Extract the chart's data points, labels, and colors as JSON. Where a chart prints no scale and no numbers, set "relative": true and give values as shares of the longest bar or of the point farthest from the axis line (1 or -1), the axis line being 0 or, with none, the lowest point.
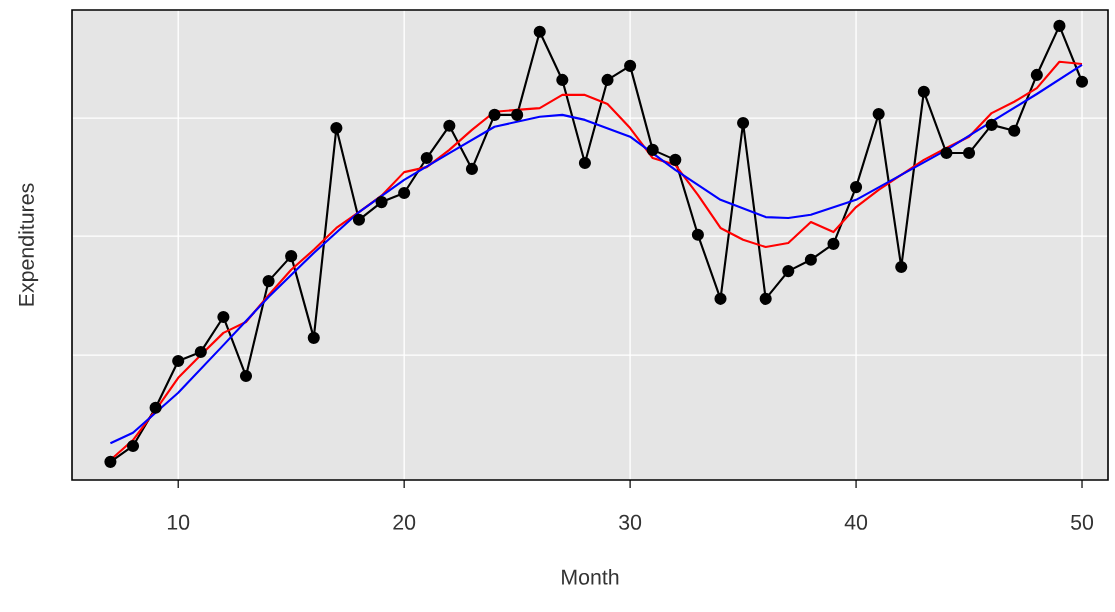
{
  "chart_data": {
    "type": "line",
    "relative": true,
    "xlabel": "Month",
    "ylabel": "Expenditures",
    "grid": true,
    "xlim": [
      5.3,
      51.15
    ],
    "xticks": [
      10,
      20,
      30,
      40,
      50
    ],
    "series": [
      {
        "color": "#000000",
        "marker": "circle",
        "line_style": "solid",
        "x": [
          7,
          8,
          9,
          10,
          11,
          12,
          13,
          14,
          15,
          16,
          17,
          18,
          19,
          20,
          21,
          22,
          23,
          24,
          25,
          26,
          27,
          28,
          29,
          30,
          31,
          32,
          33,
          34,
          35,
          36,
          37,
          38,
          39,
          40,
          41,
          42,
          43,
          44,
          45,
          46,
          47,
          48,
          49,
          50
        ],
        "values": [
          0.04,
          0.075,
          0.159,
          0.262,
          0.282,
          0.359,
          0.229,
          0.438,
          0.493,
          0.313,
          0.775,
          0.573,
          0.612,
          0.632,
          0.709,
          0.78,
          0.685,
          0.804,
          0.804,
          0.987,
          0.881,
          0.698,
          0.881,
          0.912,
          0.727,
          0.705,
          0.54,
          0.399,
          0.786,
          0.399,
          0.46,
          0.485,
          0.52,
          0.645,
          0.806,
          0.469,
          0.855,
          0.72,
          0.72,
          0.782,
          0.769,
          0.892,
          1,
          0.877
        ]
      },
      {
        "color": "#ff0000",
        "marker": "none",
        "line_style": "solid",
        "x": [
          7,
          8,
          9,
          10,
          11,
          12,
          13,
          14,
          15,
          16,
          17,
          18,
          19,
          20,
          21,
          22,
          23,
          24,
          25,
          26,
          27,
          28,
          29,
          30,
          31,
          32,
          33,
          34,
          35,
          36,
          37,
          38,
          39,
          40,
          41,
          42,
          43,
          44,
          45,
          46,
          47,
          48,
          49,
          50
        ],
        "values": [
          0.044,
          0.088,
          0.154,
          0.225,
          0.275,
          0.324,
          0.348,
          0.407,
          0.463,
          0.507,
          0.555,
          0.59,
          0.626,
          0.678,
          0.689,
          0.727,
          0.771,
          0.811,
          0.815,
          0.819,
          0.848,
          0.848,
          0.828,
          0.775,
          0.709,
          0.694,
          0.628,
          0.555,
          0.529,
          0.513,
          0.522,
          0.568,
          0.546,
          0.601,
          0.639,
          0.672,
          0.705,
          0.731,
          0.756,
          0.808,
          0.833,
          0.863,
          0.921,
          0.916
        ]
      },
      {
        "color": "#0000ff",
        "marker": "none",
        "line_style": "solid",
        "x": [
          7,
          8,
          10,
          12,
          14,
          16,
          18,
          20,
          22,
          24,
          26,
          27,
          28,
          30,
          32,
          34,
          36,
          37,
          38,
          40,
          42,
          44,
          46,
          48,
          50
        ],
        "values": [
          0.081,
          0.104,
          0.192,
          0.297,
          0.403,
          0.5,
          0.59,
          0.661,
          0.72,
          0.778,
          0.8,
          0.804,
          0.793,
          0.756,
          0.683,
          0.617,
          0.579,
          0.577,
          0.584,
          0.617,
          0.672,
          0.727,
          0.789,
          0.85,
          0.914
        ]
      }
    ]
  }
}
